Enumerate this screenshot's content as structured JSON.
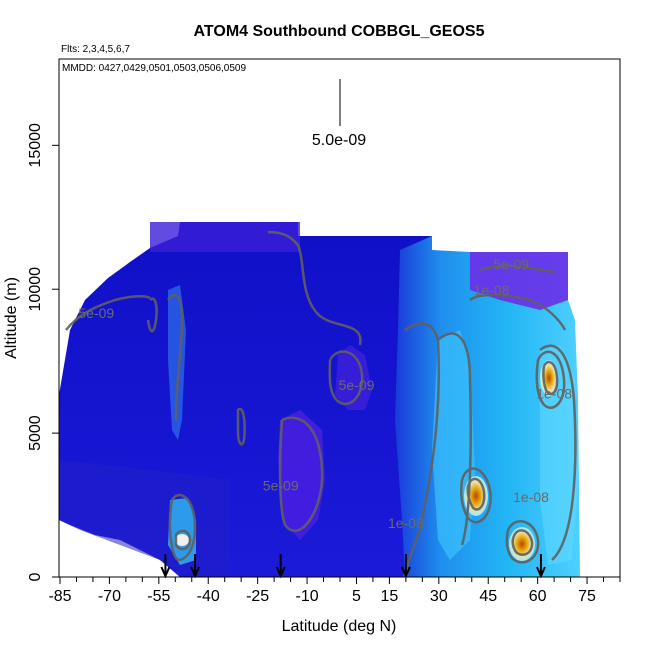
{
  "chart_data": {
    "type": "heatmap",
    "title": "ATOM4 Southbound COBBGL_GEOS5",
    "subtitle_flights": "Flts: 2,3,4,5,6,7",
    "subtitle_dates": "MMDD: 0427,0429,0501,0503,0506,0509",
    "xlabel": "Latitude (deg N)",
    "ylabel": "Altitude (m)",
    "xlim": [
      -85,
      85
    ],
    "ylim": [
      0,
      18000
    ],
    "x_ticks": [
      -85,
      -70,
      -55,
      -40,
      -25,
      -10,
      5,
      15,
      30,
      45,
      60,
      75
    ],
    "y_ticks": [
      0,
      5000,
      10000,
      15000
    ],
    "legend_value": "5.0e-09",
    "contour_labels": [
      {
        "text": "5e-09",
        "lat": -74,
        "alt": 9000
      },
      {
        "text": "5e-09",
        "lat": -18,
        "alt": 3000
      },
      {
        "text": "5e-09",
        "lat": 5,
        "alt": 6500
      },
      {
        "text": "5e-09",
        "lat": 52,
        "alt": 10700
      },
      {
        "text": "1e-08",
        "lat": 46,
        "alt": 9800
      },
      {
        "text": "1e-08",
        "lat": 20,
        "alt": 1700
      },
      {
        "text": "1e-08",
        "lat": 58,
        "alt": 2600
      },
      {
        "text": "1e-08",
        "lat": 65,
        "alt": 6200
      }
    ],
    "flight_markers_lat": [
      -53,
      -44,
      -18,
      20,
      61
    ],
    "colors": {
      "background_field": "#1a1ad0",
      "high_field": "#20b0f0",
      "contour": "#606060",
      "peak": "#e0a000"
    }
  }
}
